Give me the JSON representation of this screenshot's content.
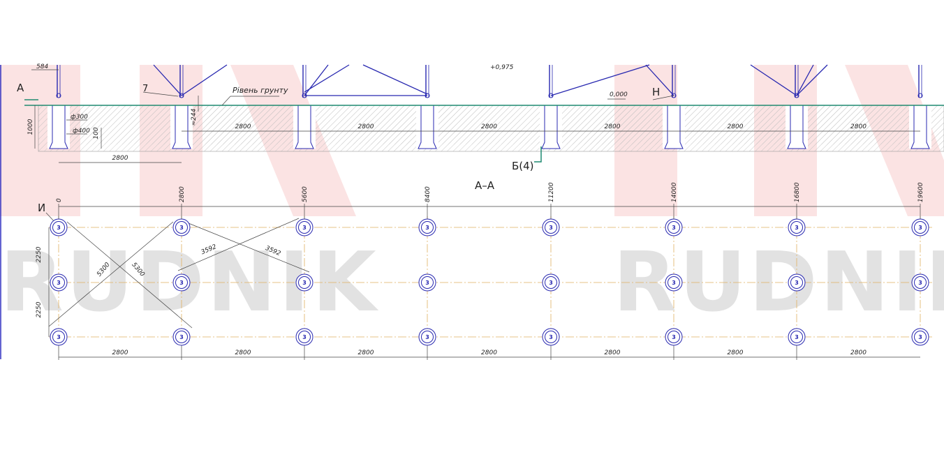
{
  "section": {
    "top_dim": "584",
    "cut_mark": "А",
    "callout_7": "7",
    "ground_label": "Рівень грунту",
    "level_top": "+0,975",
    "level_zero": "0,000",
    "callout_n": "Н",
    "depth": "1000",
    "pile_dia": "ф300",
    "base_dia": "ф400",
    "base_height": "100",
    "embed": "≈244",
    "spacings": [
      "2800",
      "2800",
      "2800",
      "2800",
      "2800",
      "2800"
    ],
    "edge_spacing": "2800",
    "view_ref": "Б(4)"
  },
  "section_title": "А–А",
  "plan": {
    "callout": "И",
    "axis_marks": [
      "0",
      "2800",
      "5600",
      "8400",
      "11200",
      "14000",
      "16800",
      "19600"
    ],
    "row_spacings": [
      "2250",
      "2250"
    ],
    "diagonals": [
      "5300",
      "5300",
      "3592",
      "3592"
    ],
    "column_spacings": [
      "2800",
      "2800",
      "2800",
      "2800",
      "2800",
      "2800",
      "2800"
    ],
    "piles": [
      [
        "3",
        "3",
        "3",
        "3",
        "3",
        "3",
        "3",
        "3"
      ],
      [
        "3",
        "3",
        "3",
        "3",
        "3",
        "3",
        "3",
        "3"
      ],
      [
        "3",
        "3",
        "3",
        "3",
        "3",
        "3",
        "3",
        "3"
      ]
    ]
  },
  "watermark": [
    "RUDNIK",
    "RUDNIK"
  ]
}
